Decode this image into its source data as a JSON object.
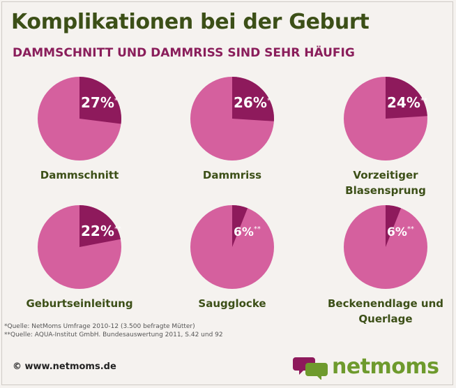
{
  "header": {
    "title": "Komplikationen bei der Geburt",
    "subtitle": "DAMMSCHNITT UND DAMMRISS SIND SEHR HÄUFIG"
  },
  "colors": {
    "pie_main": "#d5609e",
    "pie_slice": "#8e1a5c",
    "label": "#3c4f17",
    "brand_green": "#6e9a2d"
  },
  "chart_data": {
    "type": "pie",
    "items": [
      {
        "label": "Dammschnitt",
        "value": 27,
        "pct_text": "27%",
        "mark": "*"
      },
      {
        "label": "Dammriss",
        "value": 26,
        "pct_text": "26%",
        "mark": "*"
      },
      {
        "label": "Vorzeitiger\nBlasensprung",
        "value": 24,
        "pct_text": "24%",
        "mark": "**"
      },
      {
        "label": "Geburtseinleitung",
        "value": 22,
        "pct_text": "22%",
        "mark": "**"
      },
      {
        "label": "Saugglocke",
        "value": 6,
        "pct_text": "6%",
        "mark": "**"
      },
      {
        "label": "Beckenendlage und\nQuerlage",
        "value": 6,
        "pct_text": "6%",
        "mark": "**"
      }
    ]
  },
  "footnotes": {
    "note1": "*Quelle: NetMoms Umfrage 2010-12 (3.500 befragte Mütter)",
    "note2": "**Quelle: AQUA-Institut GmbH. Bundesauswertung 2011, S.42 und 92"
  },
  "footer": {
    "copyright": "© www.netmoms.de",
    "brand": "netmoms",
    "logo_icon": "speech-bubbles-icon"
  }
}
